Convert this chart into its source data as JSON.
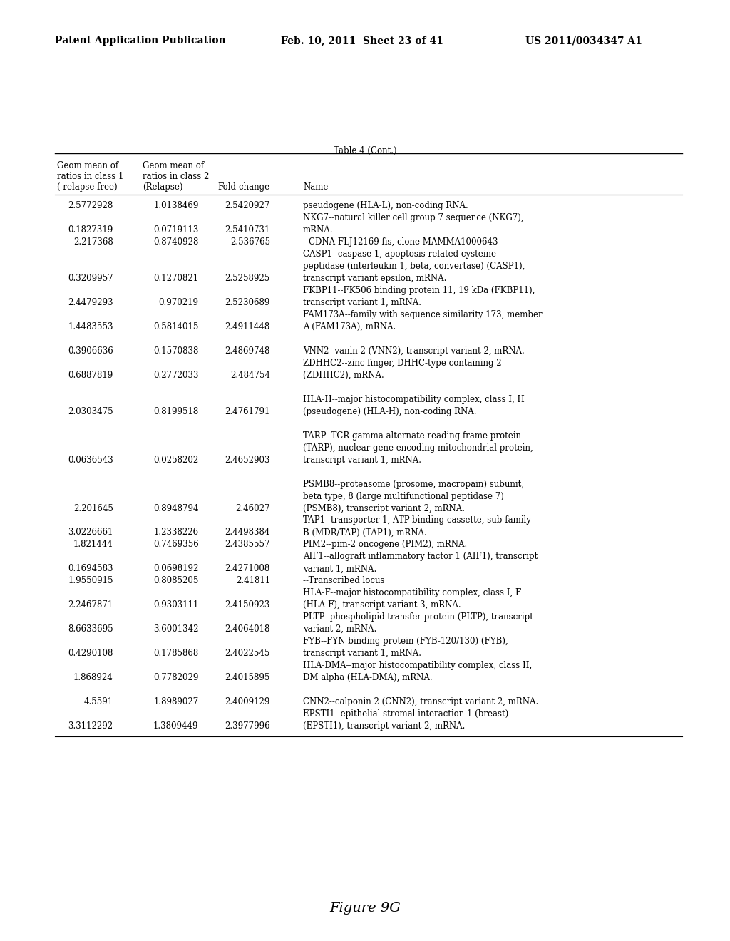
{
  "header_line1": "Patent Application Publication",
  "header_line2": "Feb. 10, 2011  Sheet 23 of 41",
  "header_line3": "US 2011/0034347 A1",
  "table_title": "Table 4 (Cont.)",
  "rows": [
    [
      "2.5772928",
      "1.0138469",
      "2.5420927",
      "pseudogene (HLA-L), non-coding RNA."
    ],
    [
      "",
      "",
      "",
      "NKG7--natural killer cell group 7 sequence (NKG7),"
    ],
    [
      "0.1827319",
      "0.0719113",
      "2.5410731",
      "mRNA."
    ],
    [
      "2.217368",
      "0.8740928",
      "2.536765",
      "--CDNA FLJ12169 fis, clone MAMMA1000643"
    ],
    [
      "",
      "",
      "",
      "CASP1--caspase 1, apoptosis-related cysteine"
    ],
    [
      "",
      "",
      "",
      "peptidase (interleukin 1, beta, convertase) (CASP1),"
    ],
    [
      "0.3209957",
      "0.1270821",
      "2.5258925",
      "transcript variant epsilon, mRNA."
    ],
    [
      "",
      "",
      "",
      "FKBP11--FK506 binding protein 11, 19 kDa (FKBP11),"
    ],
    [
      "2.4479293",
      "0.970219",
      "2.5230689",
      "transcript variant 1, mRNA."
    ],
    [
      "",
      "",
      "",
      "FAM173A--family with sequence similarity 173, member"
    ],
    [
      "1.4483553",
      "0.5814015",
      "2.4911448",
      "A (FAM173A), mRNA."
    ],
    [
      "",
      "",
      "",
      ""
    ],
    [
      "0.3906636",
      "0.1570838",
      "2.4869748",
      "VNN2--vanin 2 (VNN2), transcript variant 2, mRNA."
    ],
    [
      "",
      "",
      "",
      "ZDHHC2--zinc finger, DHHC-type containing 2"
    ],
    [
      "0.6887819",
      "0.2772033",
      "2.484754",
      "(ZDHHC2), mRNA."
    ],
    [
      "",
      "",
      "",
      ""
    ],
    [
      "",
      "",
      "",
      "HLA-H--major histocompatibility complex, class I, H"
    ],
    [
      "2.0303475",
      "0.8199518",
      "2.4761791",
      "(pseudogene) (HLA-H), non-coding RNA."
    ],
    [
      "",
      "",
      "",
      ""
    ],
    [
      "",
      "",
      "",
      "TARP--TCR gamma alternate reading frame protein"
    ],
    [
      "",
      "",
      "",
      "(TARP), nuclear gene encoding mitochondrial protein,"
    ],
    [
      "0.0636543",
      "0.0258202",
      "2.4652903",
      "transcript variant 1, mRNA."
    ],
    [
      "",
      "",
      "",
      ""
    ],
    [
      "",
      "",
      "",
      "PSMB8--proteasome (prosome, macropain) subunit,"
    ],
    [
      "",
      "",
      "",
      "beta type, 8 (large multifunctional peptidase 7)"
    ],
    [
      "2.201645",
      "0.8948794",
      "2.46027",
      "(PSMB8), transcript variant 2, mRNA."
    ],
    [
      "",
      "",
      "",
      "TAP1--transporter 1, ATP-binding cassette, sub-family"
    ],
    [
      "3.0226661",
      "1.2338226",
      "2.4498384",
      "B (MDR/TAP) (TAP1), mRNA."
    ],
    [
      "1.821444",
      "0.7469356",
      "2.4385557",
      "PIM2--pim-2 oncogene (PIM2), mRNA."
    ],
    [
      "",
      "",
      "",
      "AIF1--allograft inflammatory factor 1 (AIF1), transcript"
    ],
    [
      "0.1694583",
      "0.0698192",
      "2.4271008",
      "variant 1, mRNA."
    ],
    [
      "1.9550915",
      "0.8085205",
      "2.41811",
      "--Transcribed locus"
    ],
    [
      "",
      "",
      "",
      "HLA-F--major histocompatibility complex, class I, F"
    ],
    [
      "2.2467871",
      "0.9303111",
      "2.4150923",
      "(HLA-F), transcript variant 3, mRNA."
    ],
    [
      "",
      "",
      "",
      "PLTP--phospholipid transfer protein (PLTP), transcript"
    ],
    [
      "8.6633695",
      "3.6001342",
      "2.4064018",
      "variant 2, mRNA."
    ],
    [
      "",
      "",
      "",
      "FYB--FYN binding protein (FYB-120/130) (FYB),"
    ],
    [
      "0.4290108",
      "0.1785868",
      "2.4022545",
      "transcript variant 1, mRNA."
    ],
    [
      "",
      "",
      "",
      "HLA-DMA--major histocompatibility complex, class II,"
    ],
    [
      "1.868924",
      "0.7782029",
      "2.4015895",
      "DM alpha (HLA-DMA), mRNA."
    ],
    [
      "",
      "",
      "",
      ""
    ],
    [
      "4.5591",
      "1.8989027",
      "2.4009129",
      "CNN2--calponin 2 (CNN2), transcript variant 2, mRNA."
    ],
    [
      "",
      "",
      "",
      "EPSTI1--epithelial stromal interaction 1 (breast)"
    ],
    [
      "3.3112292",
      "1.3809449",
      "2.3977996",
      "(EPSTI1), transcript variant 2, mRNA."
    ]
  ],
  "figure_caption": "Figure 9G",
  "background_color": "#ffffff",
  "text_color": "#000000"
}
